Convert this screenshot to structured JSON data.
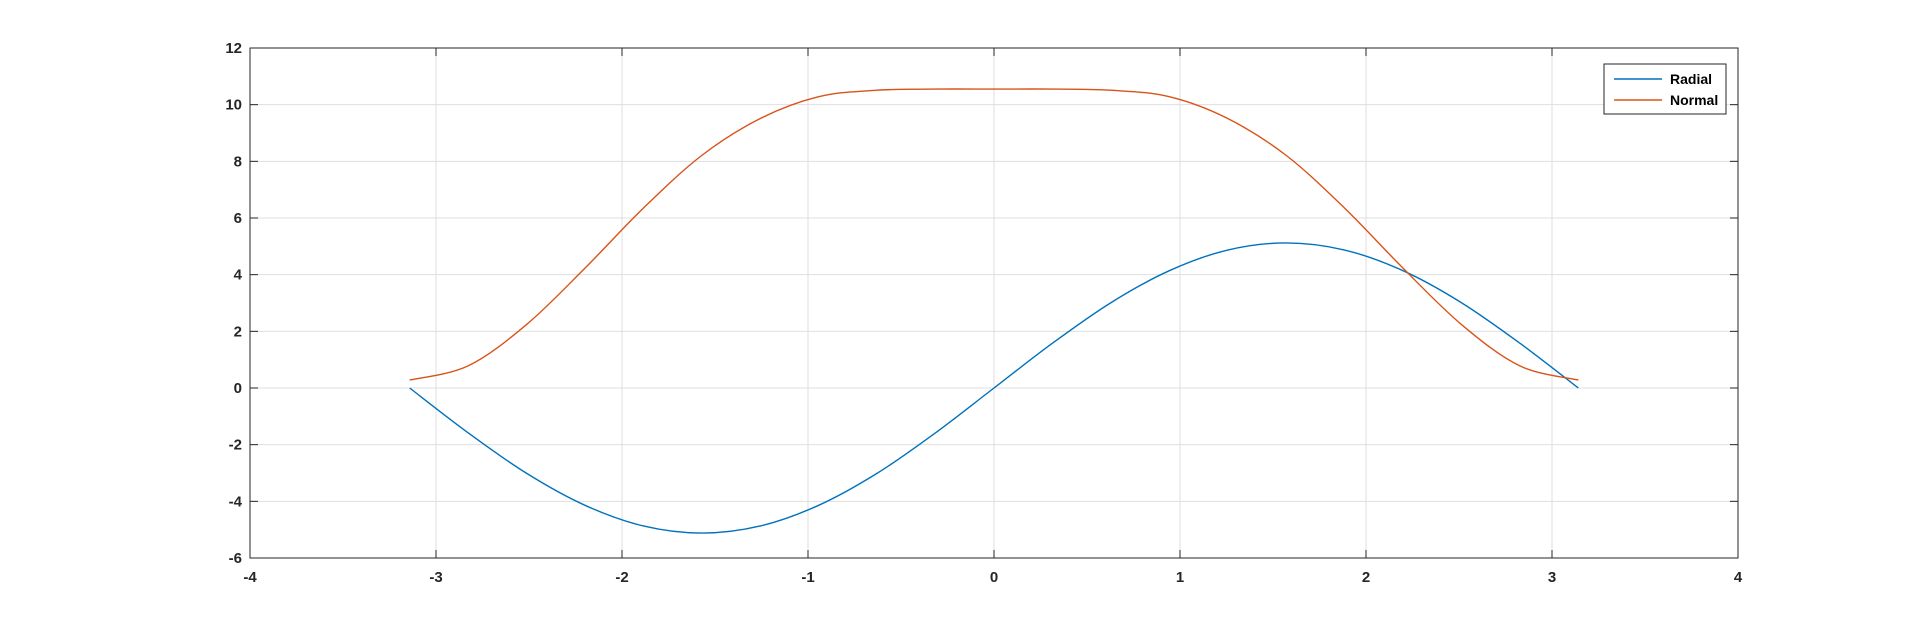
{
  "chart_data": {
    "type": "line",
    "title": "",
    "xlabel": "",
    "ylabel": "",
    "xlim": [
      -4,
      4
    ],
    "ylim": [
      -6,
      12
    ],
    "xticks": [
      -4,
      -3,
      -2,
      -1,
      0,
      1,
      2,
      3,
      4
    ],
    "yticks": [
      -6,
      -4,
      -2,
      0,
      2,
      4,
      6,
      8,
      10,
      12
    ],
    "xtick_labels": [
      "-4",
      "-3",
      "-2",
      "-1",
      "0",
      "1",
      "2",
      "3",
      "4"
    ],
    "ytick_labels": [
      "-6",
      "-4",
      "-2",
      "0",
      "2",
      "4",
      "6",
      "8",
      "10",
      "12"
    ],
    "grid": true,
    "legend_position": "top-right",
    "x": [
      -3.1416,
      -2.8274,
      -2.5133,
      -2.1991,
      -1.885,
      -1.5708,
      -1.2566,
      -0.9425,
      -0.6283,
      -0.3142,
      0,
      0.3142,
      0.6283,
      0.9425,
      1.2566,
      1.5708,
      1.885,
      2.1991,
      2.5133,
      2.8274,
      3.1416
    ],
    "series": [
      {
        "name": "Radial",
        "color": "#0072bd",
        "values": [
          0,
          -1.58,
          -3.01,
          -4.14,
          -4.87,
          -5.12,
          -4.87,
          -4.14,
          -3.01,
          -1.58,
          0,
          1.58,
          3.01,
          4.14,
          4.87,
          5.12,
          4.87,
          4.14,
          3.01,
          1.58,
          0
        ]
      },
      {
        "name": "Normal",
        "color": "#d95319",
        "values": [
          0.28,
          0.78,
          2.24,
          4.23,
          6.35,
          8.21,
          9.51,
          10.28,
          10.51,
          10.55,
          10.55,
          10.55,
          10.51,
          10.28,
          9.51,
          8.21,
          6.35,
          4.23,
          2.24,
          0.78,
          0.28
        ]
      }
    ]
  }
}
